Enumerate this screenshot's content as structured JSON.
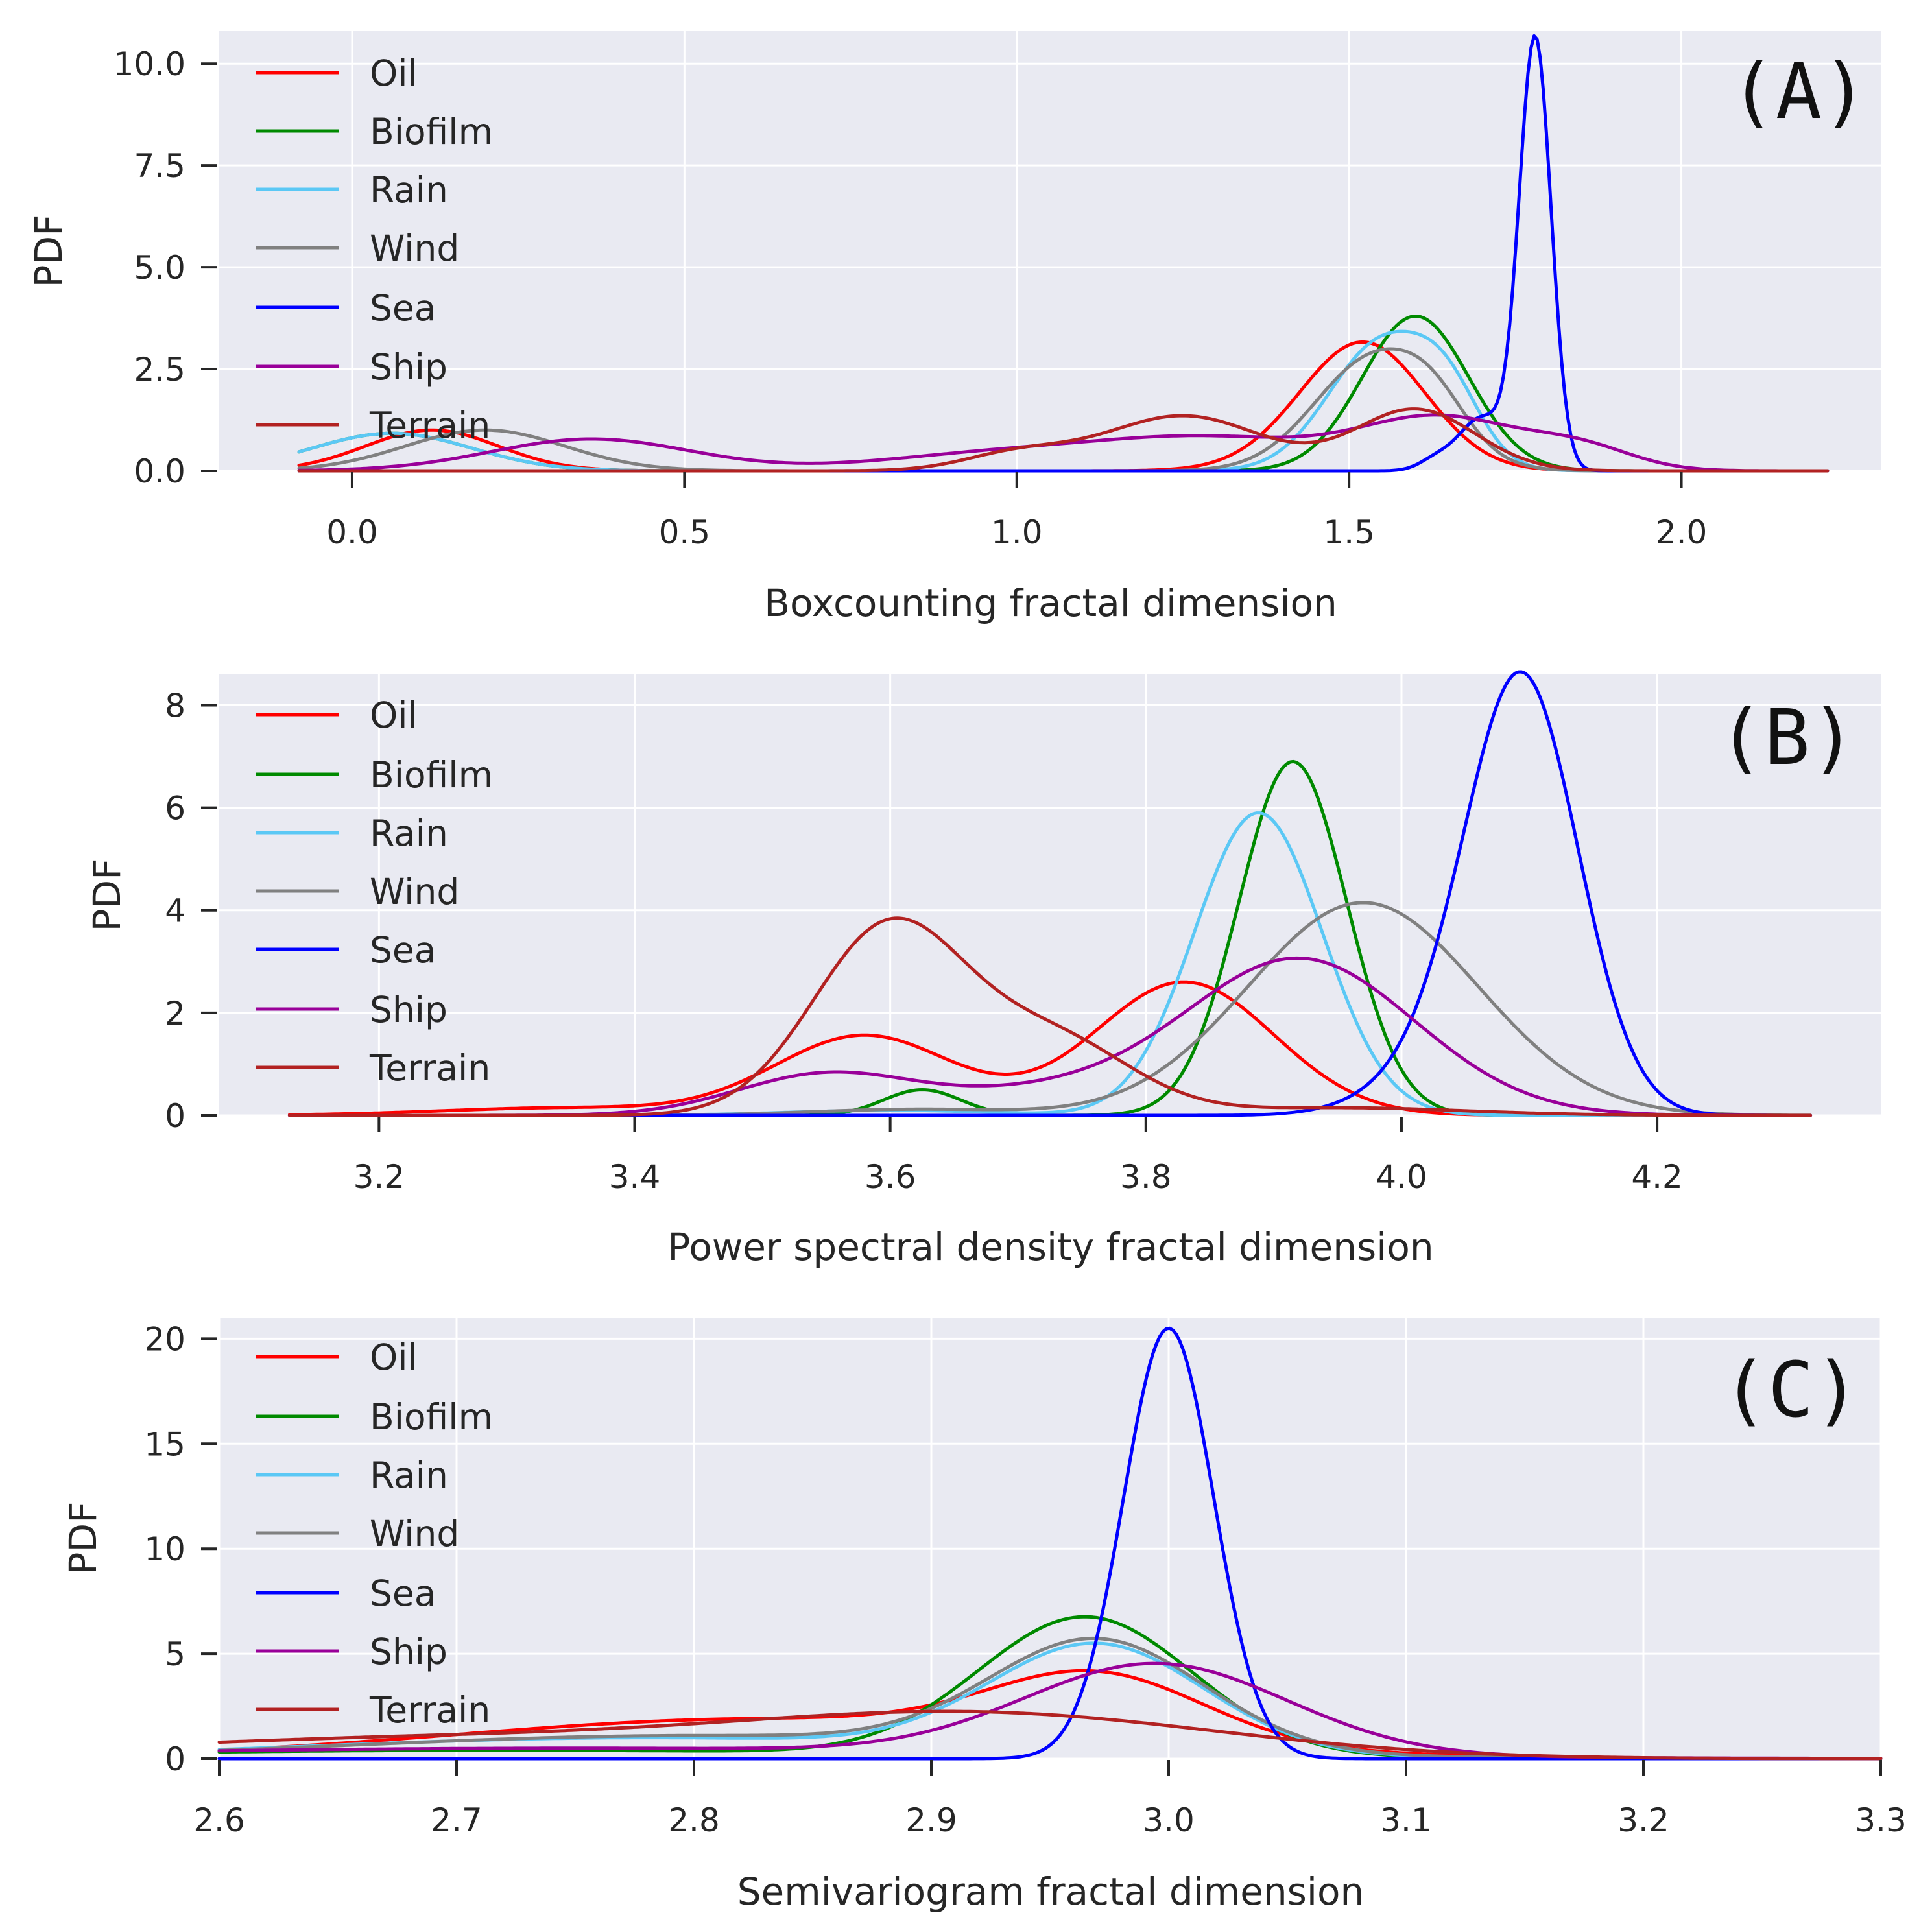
{
  "figure": {
    "colors": {
      "background": "#e9eaf2",
      "grid": "#ffffff"
    }
  },
  "legend_colors": {
    "Oil": "#ff0000",
    "Biofilm": "#008a00",
    "Rain": "#5bc8f5",
    "Wind": "#808080",
    "Sea": "#0000ff",
    "Ship": "#990099",
    "Terrain": "#b22222"
  },
  "chart_data": [
    {
      "id": "A",
      "type": "line",
      "panel_label": "(A)",
      "xlabel": "Boxcounting fractal dimension",
      "ylabel": "PDF",
      "xlim": [
        -0.2,
        2.3
      ],
      "ylim": [
        0,
        10.8
      ],
      "xticks": [
        0.0,
        0.5,
        1.0,
        1.5,
        2.0
      ],
      "xtick_labels": [
        "0.0",
        "0.5",
        "1.0",
        "1.5",
        "2.0"
      ],
      "yticks": [
        0.0,
        2.5,
        5.0,
        7.5,
        10.0
      ],
      "ytick_labels": [
        "0.0",
        "2.5",
        "5.0",
        "7.5",
        "10.0"
      ],
      "xrange": [
        -0.08,
        2.22
      ],
      "legend": [
        "Oil",
        "Biofilm",
        "Rain",
        "Wind",
        "Sea",
        "Ship",
        "Terrain"
      ],
      "legend_position": "top-left",
      "series": [
        {
          "name": "Oil",
          "components": [
            [
              0.12,
              1.0,
              0.1
            ],
            [
              1.5,
              1.2,
              0.1
            ],
            [
              1.53,
              2.0,
              0.09
            ]
          ]
        },
        {
          "name": "Biofilm",
          "components": [
            [
              0.06,
              0.92,
              0.12
            ],
            [
              1.6,
              3.8,
              0.08
            ]
          ]
        },
        {
          "name": "Rain",
          "components": [
            [
              0.06,
              0.92,
              0.12
            ],
            [
              1.55,
              3.15,
              0.08
            ],
            [
              1.65,
              1.3,
              0.05
            ]
          ]
        },
        {
          "name": "Wind",
          "components": [
            [
              0.2,
              1.0,
              0.12
            ],
            [
              1.54,
              2.8,
              0.09
            ],
            [
              1.63,
              0.7,
              0.05
            ]
          ]
        },
        {
          "name": "Sea",
          "components": [
            [
              1.78,
              10.6,
              0.024
            ],
            [
              1.7,
              1.3,
              0.035
            ],
            [
              1.63,
              0.25,
              0.025
            ]
          ]
        },
        {
          "name": "Ship",
          "components": [
            [
              0.36,
              0.78,
              0.15
            ],
            [
              0.98,
              0.42,
              0.18
            ],
            [
              1.3,
              0.75,
              0.17
            ],
            [
              1.64,
              1.25,
              0.12
            ],
            [
              1.85,
              0.5,
              0.08
            ]
          ]
        },
        {
          "name": "Terrain",
          "components": [
            [
              1.25,
              1.35,
              0.12
            ],
            [
              1.6,
              1.5,
              0.09
            ],
            [
              1.0,
              0.4,
              0.08
            ]
          ]
        }
      ]
    },
    {
      "id": "B",
      "type": "line",
      "panel_label": "(B)",
      "xlabel": "Power spectral density fractal dimension",
      "ylabel": "PDF",
      "xlim": [
        3.075,
        4.375
      ],
      "ylim": [
        0,
        8.6
      ],
      "xticks": [
        3.2,
        3.4,
        3.6,
        3.8,
        4.0,
        4.2
      ],
      "xtick_labels": [
        "3.2",
        "3.4",
        "3.6",
        "3.8",
        "4.0",
        "4.2"
      ],
      "yticks": [
        0,
        2,
        4,
        6,
        8
      ],
      "ytick_labels": [
        "0",
        "2",
        "4",
        "6",
        "8"
      ],
      "xrange": [
        3.13,
        4.32
      ],
      "legend": [
        "Oil",
        "Biofilm",
        "Rain",
        "Wind",
        "Sea",
        "Ship",
        "Terrain"
      ],
      "legend_position": "top-left",
      "series": [
        {
          "name": "Oil",
          "components": [
            [
              3.58,
              1.55,
              0.07
            ],
            [
              3.83,
              2.6,
              0.07
            ],
            [
              3.35,
              0.15,
              0.1
            ]
          ]
        },
        {
          "name": "Biofilm",
          "components": [
            [
              3.915,
              6.9,
              0.042
            ],
            [
              3.625,
              0.5,
              0.03
            ]
          ]
        },
        {
          "name": "Rain",
          "components": [
            [
              3.888,
              5.9,
              0.05
            ],
            [
              3.6,
              0.1,
              0.08
            ]
          ]
        },
        {
          "name": "Wind",
          "components": [
            [
              3.97,
              4.15,
              0.09
            ],
            [
              3.62,
              0.12,
              0.08
            ]
          ]
        },
        {
          "name": "Sea",
          "components": [
            [
              4.095,
              8.3,
              0.044
            ],
            [
              4.03,
              0.8,
              0.05
            ]
          ]
        },
        {
          "name": "Ship",
          "components": [
            [
              3.55,
              0.8,
              0.07
            ],
            [
              3.92,
              3.05,
              0.09
            ],
            [
              3.72,
              0.4,
              0.08
            ]
          ]
        },
        {
          "name": "Terrain",
          "components": [
            [
              3.6,
              3.7,
              0.06
            ],
            [
              3.73,
              1.4,
              0.06
            ],
            [
              3.95,
              0.15,
              0.1
            ]
          ]
        }
      ]
    },
    {
      "id": "C",
      "type": "line",
      "panel_label": "(C)",
      "xlabel": "Semivariogram fractal dimension",
      "ylabel": "PDF",
      "xlim": [
        2.6,
        3.3
      ],
      "ylim": [
        0,
        21
      ],
      "xticks": [
        2.6,
        2.7,
        2.8,
        2.9,
        3.0,
        3.1,
        3.2,
        3.3
      ],
      "xtick_labels": [
        "2.6",
        "2.7",
        "2.8",
        "2.9",
        "3.0",
        "3.1",
        "3.2",
        "3.3"
      ],
      "yticks": [
        0,
        5,
        10,
        15,
        20
      ],
      "ytick_labels": [
        "0",
        "5",
        "10",
        "15",
        "20"
      ],
      "xrange": [
        2.6,
        3.3
      ],
      "legend": [
        "Oil",
        "Biofilm",
        "Rain",
        "Wind",
        "Sea",
        "Ship",
        "Terrain"
      ],
      "legend_position": "top-left",
      "series": [
        {
          "name": "Oil",
          "components": [
            [
              2.97,
              3.1,
              0.045
            ],
            [
              2.83,
              1.9,
              0.13
            ]
          ]
        },
        {
          "name": "Biofilm",
          "components": [
            [
              2.965,
              6.6,
              0.045
            ],
            [
              2.72,
              0.4,
              0.18
            ]
          ]
        },
        {
          "name": "Rain",
          "components": [
            [
              2.97,
              5.1,
              0.045
            ],
            [
              2.78,
              1.0,
              0.14
            ]
          ]
        },
        {
          "name": "Wind",
          "components": [
            [
              2.97,
              5.2,
              0.045
            ],
            [
              2.8,
              1.1,
              0.14
            ]
          ]
        },
        {
          "name": "Sea",
          "components": [
            [
              3.0,
              20.5,
              0.019
            ]
          ]
        },
        {
          "name": "Ship",
          "components": [
            [
              2.995,
              4.3,
              0.055
            ],
            [
              2.75,
              0.5,
              0.2
            ]
          ]
        },
        {
          "name": "Terrain",
          "components": [
            [
              2.925,
              1.95,
              0.1
            ],
            [
              2.7,
              1.0,
              0.14
            ]
          ]
        }
      ]
    }
  ]
}
